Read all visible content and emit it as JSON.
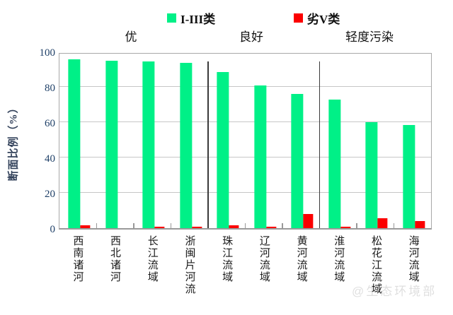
{
  "legend": {
    "items": [
      {
        "label": "I-III类",
        "color": "#00f087"
      },
      {
        "label": "劣V类",
        "color": "#fb0000"
      }
    ]
  },
  "sections": {
    "excellent": "优",
    "good": "良好",
    "light_pollution": "轻度污染"
  },
  "y_axis": {
    "title": "断面比例（%）",
    "tick_color": "#1f4068"
  },
  "watermark": "@生态环境部",
  "chart_data": {
    "type": "bar",
    "title": "",
    "xlabel": "",
    "ylabel": "断面比例（%）",
    "ylim": [
      0,
      100
    ],
    "yticks": [
      0,
      20,
      40,
      60,
      80,
      100
    ],
    "grid": true,
    "legend_position": "top",
    "categories": [
      "西南诸河",
      "西北诸河",
      "长江流域",
      "浙闽片河流",
      "珠江流域",
      "辽河流域",
      "黄河流域",
      "淮河流域",
      "松花江流域",
      "海河流域"
    ],
    "series": [
      {
        "name": "I-III类",
        "color": "#00f087",
        "values": [
          95.5,
          95,
          94.5,
          93.5,
          88.5,
          81,
          76,
          73,
          60,
          58.5
        ]
      },
      {
        "name": "劣V类",
        "color": "#fb0000",
        "values": [
          1.5,
          0,
          1,
          1,
          1.5,
          1,
          8,
          1,
          5.5,
          4
        ]
      }
    ],
    "section_annotations": [
      {
        "text": "优",
        "category_span": [
          0,
          3
        ],
        "label_center_x": 185
      },
      {
        "text": "良好",
        "category_span": [
          4,
          6
        ],
        "label_center_x": 355
      },
      {
        "text": "轻度污染",
        "category_span": [
          7,
          9
        ],
        "label_center_x": 522
      }
    ],
    "dividers_after_category_index": [
      3,
      6
    ]
  }
}
